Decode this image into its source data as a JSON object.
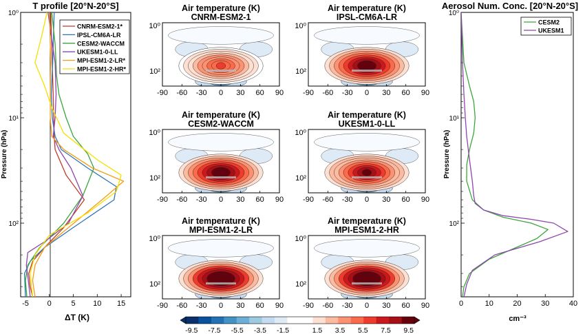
{
  "chart_data": [
    {
      "type": "line",
      "title": "T profile [20°N-20°S]",
      "xlabel": "ΔT (K)",
      "ylabel": "Pressure (hPa)",
      "xlim": [
        -6,
        17
      ],
      "ylim": [
        1,
        500
      ],
      "y_scale": "log",
      "y_reversed": true,
      "x_ticks": [
        "-5",
        "0",
        "5",
        "10",
        "15"
      ],
      "x_tick_values": [
        -5,
        0,
        5,
        10,
        15
      ],
      "y_ticks": [
        "10⁰",
        "10¹",
        "10²"
      ],
      "y_tick_values": [
        1,
        10,
        100
      ],
      "grid": false,
      "legend": "top-right",
      "reference_line_x": 0,
      "series": [
        {
          "name": "CNRM-ESM2-1*",
          "color": "#c0392b",
          "x": [
            0.3,
            0.6,
            0.8,
            0.9,
            1.0,
            1.2,
            3.5,
            7.3,
            3.0,
            -1.0,
            -3.5,
            -4.3,
            -4.0,
            -3.5
          ],
          "y": [
            1,
            3,
            6,
            10,
            15,
            20,
            35,
            60,
            110,
            170,
            230,
            300,
            400,
            500
          ]
        },
        {
          "name": "IPSL-CM6A-LR",
          "color": "#2e75b6",
          "x": [
            1.0,
            0.7,
            0.4,
            0.6,
            1.2,
            2.5,
            8.0,
            14.0,
            13.5,
            5.0,
            -1.0,
            -4.0,
            -5.2,
            -5.0
          ],
          "y": [
            1,
            3,
            6,
            10,
            15,
            20,
            30,
            45,
            60,
            110,
            170,
            230,
            300,
            500
          ]
        },
        {
          "name": "CESM2-WACCM",
          "color": "#3aa53a",
          "x": [
            0.5,
            1.2,
            1.5,
            2.0,
            3.5,
            5.0,
            8.0,
            9.3,
            7.0,
            3.0,
            -2.0,
            -4.5,
            -5.0,
            -4.7
          ],
          "y": [
            1,
            2,
            4,
            6,
            10,
            15,
            22,
            30,
            55,
            100,
            170,
            250,
            350,
            500
          ]
        },
        {
          "name": "UKESM1-0-LL",
          "color": "#8e44ad",
          "x": [
            -0.3,
            1.2,
            1.4,
            1.2,
            0.8,
            2.0,
            4.5,
            7.0,
            4.0,
            -1.0,
            -4.5,
            -4.8,
            -4.4,
            -4.0
          ],
          "y": [
            1,
            3,
            6,
            10,
            15,
            20,
            30,
            55,
            100,
            150,
            190,
            250,
            350,
            500
          ]
        },
        {
          "name": "MPI-ESM1-2-LR*",
          "color": "#f39c12",
          "x": [
            0.0,
            0.3,
            0.2,
            0.2,
            0.5,
            3.0,
            9.0,
            15.5,
            12.0,
            4.0,
            -1.0,
            -3.0,
            -3.5,
            -3.0
          ],
          "y": [
            1,
            3,
            6,
            10,
            15,
            20,
            30,
            40,
            55,
            110,
            170,
            250,
            350,
            500
          ]
        },
        {
          "name": "MPI-ESM1-2-HR*",
          "color": "#f5e000",
          "x": [
            -0.5,
            -1.5,
            -3.0,
            -1.0,
            0.5,
            3.0,
            10.0,
            15.0,
            14.0,
            8.0,
            0.0,
            -3.0,
            -4.0,
            -3.5
          ],
          "y": [
            1,
            1.6,
            3,
            5,
            8,
            14,
            25,
            35,
            50,
            80,
            130,
            200,
            300,
            500
          ]
        }
      ]
    },
    {
      "type": "heatmap",
      "title": "Air temperature (K)",
      "subtitle": "CNRM-ESM2-1",
      "x_ticks": [
        "-90",
        "-60",
        "-30",
        "0",
        "30",
        "60",
        "90"
      ],
      "y_ticks": [
        "10⁰",
        "10²"
      ],
      "xlim": [
        -90,
        90
      ],
      "peak_anomaly": 6.0
    },
    {
      "type": "heatmap",
      "title": "Air temperature (K)",
      "subtitle": "IPSL-CM6A-LR",
      "x_ticks": [
        "-90",
        "-60",
        "-30",
        "0",
        "30",
        "60",
        "90"
      ],
      "y_ticks": [
        "10⁰",
        "10²"
      ],
      "xlim": [
        -90,
        90
      ],
      "peak_anomaly": 10.0
    },
    {
      "type": "heatmap",
      "title": "Air temperature (K)",
      "subtitle": "CESM2-WACCM",
      "x_ticks": [
        "-90",
        "-60",
        "-30",
        "0",
        "30",
        "60",
        "90"
      ],
      "y_ticks": [
        "10⁰",
        "10²"
      ],
      "xlim": [
        -90,
        90
      ],
      "peak_anomaly": 10.0
    },
    {
      "type": "heatmap",
      "title": "Air temperature (K)",
      "subtitle": "UKESM1-0-LL",
      "x_ticks": [
        "-90",
        "-60",
        "-30",
        "0",
        "30",
        "60",
        "90"
      ],
      "y_ticks": [
        "10⁰",
        "10²"
      ],
      "xlim": [
        -90,
        90
      ],
      "peak_anomaly": 9.0
    },
    {
      "type": "heatmap",
      "title": "Air temperature (K)",
      "subtitle": "MPI-ESM1-2-LR",
      "x_ticks": [
        "-90",
        "-60",
        "-30",
        "0",
        "30",
        "60",
        "90"
      ],
      "y_ticks": [
        "10⁰",
        "10²"
      ],
      "xlim": [
        -90,
        90
      ],
      "peak_anomaly": 12.0
    },
    {
      "type": "heatmap",
      "title": "Air temperature (K)",
      "subtitle": "MPI-ESM1-2-HR",
      "x_ticks": [
        "-90",
        "-60",
        "-30",
        "0",
        "30",
        "60",
        "90"
      ],
      "y_ticks": [
        "10⁰",
        "10²"
      ],
      "xlim": [
        -90,
        90
      ],
      "peak_anomaly": 12.0
    },
    {
      "type": "colorbar",
      "tick_labels": [
        "-9.5",
        "-7.5",
        "-5.5",
        "-3.5",
        "-1.5",
        "1.5",
        "3.5",
        "5.5",
        "7.5",
        "9.5"
      ],
      "range": [
        -10,
        10
      ]
    },
    {
      "type": "line",
      "title": "Aerosol Num. Conc. [20°N-20°S]",
      "xlabel": "cm⁻³",
      "ylabel": "Pressure (hPa)",
      "xlim": [
        0,
        40
      ],
      "ylim": [
        1,
        500
      ],
      "y_scale": "log",
      "y_reversed": true,
      "x_ticks": [
        "0",
        "10",
        "20",
        "30",
        "40"
      ],
      "x_tick_values": [
        0,
        10,
        20,
        30,
        40
      ],
      "y_ticks": [
        "10⁰",
        "10¹",
        "10²"
      ],
      "y_tick_values": [
        1,
        10,
        100
      ],
      "grid": false,
      "legend": "top-right",
      "series": [
        {
          "name": "CESM2",
          "color": "#3aa53a",
          "x": [
            0,
            1,
            3,
            4.5,
            5,
            4.5,
            3,
            2,
            2,
            4,
            8,
            15,
            25,
            31,
            27,
            10,
            3,
            1,
            0.5
          ],
          "y": [
            1,
            3,
            5,
            7,
            10,
            14,
            20,
            28,
            40,
            60,
            75,
            88,
            100,
            115,
            140,
            220,
            300,
            400,
            500
          ]
        },
        {
          "name": "UKESM1",
          "color": "#8e44ad",
          "x": [
            0,
            0.5,
            1,
            1.5,
            2,
            3,
            4,
            4.5,
            5,
            8,
            15,
            25,
            33,
            38,
            28,
            12,
            4,
            2,
            1
          ],
          "y": [
            1,
            3,
            6,
            10,
            15,
            25,
            40,
            55,
            65,
            75,
            85,
            92,
            100,
            120,
            150,
            200,
            280,
            380,
            500
          ]
        }
      ]
    }
  ]
}
